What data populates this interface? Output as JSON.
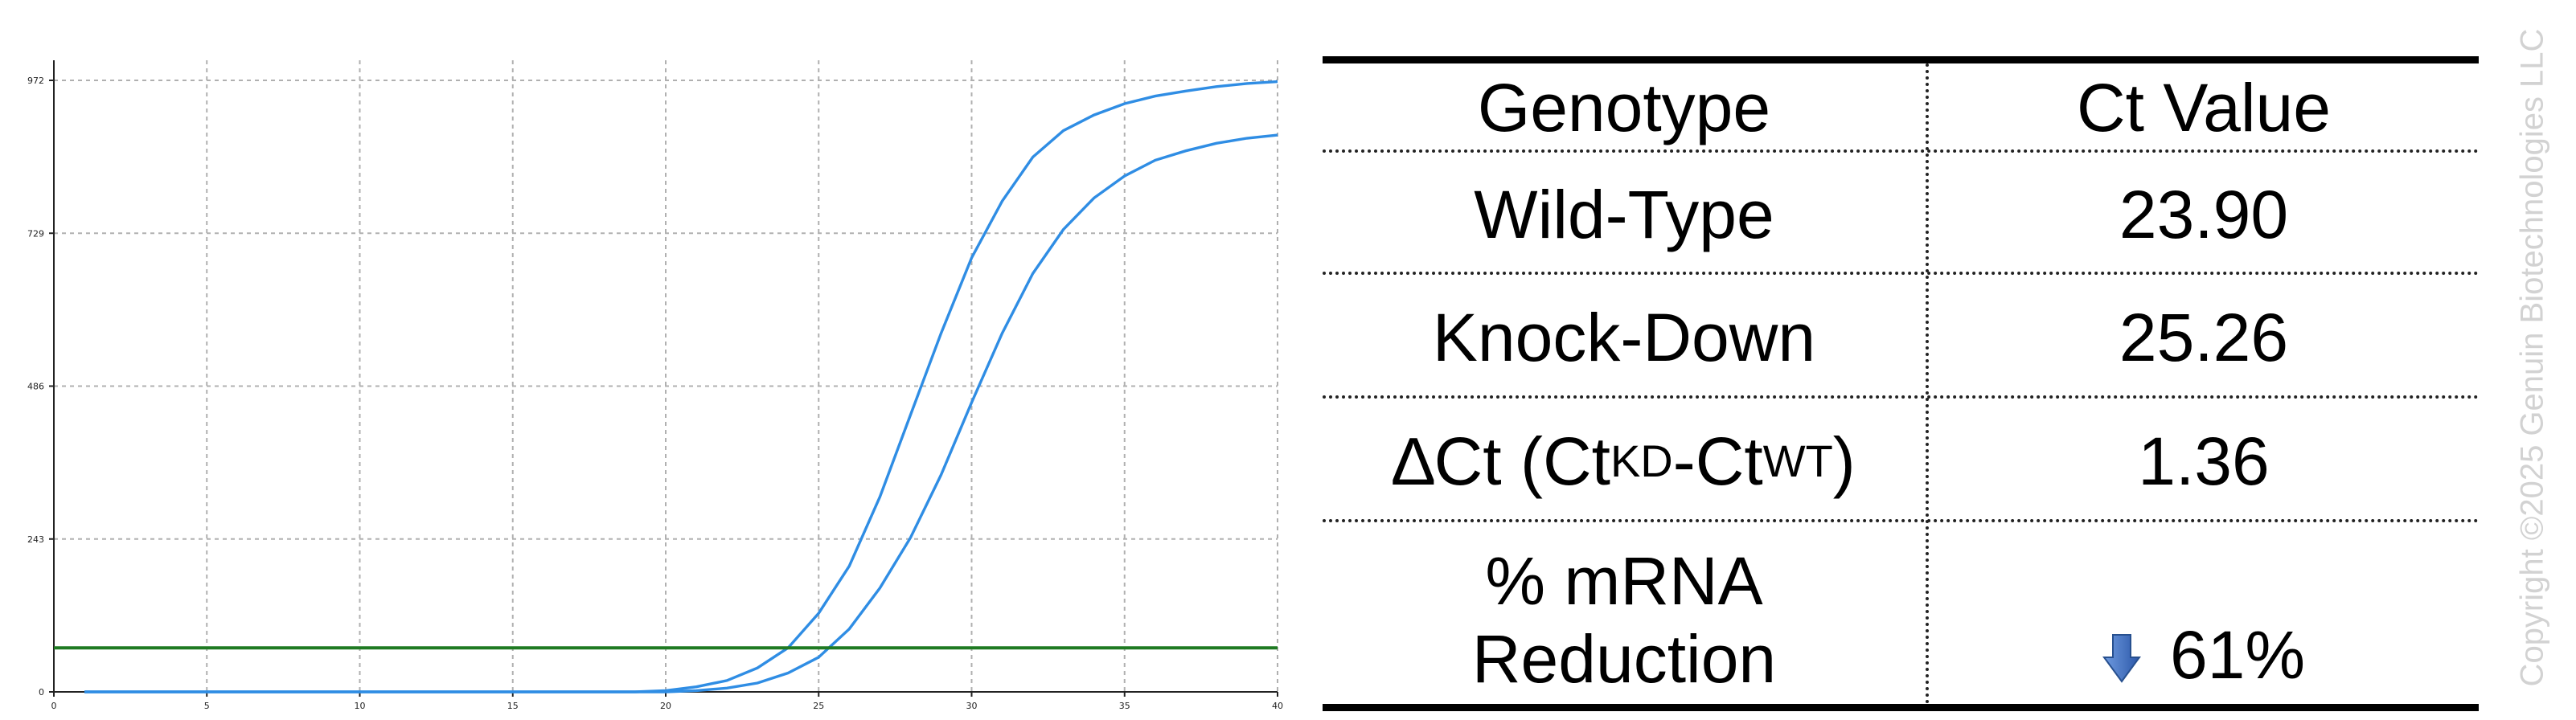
{
  "chart_data": {
    "type": "line",
    "title": "",
    "xlabel": "",
    "ylabel": "",
    "xlim": [
      0,
      40
    ],
    "ylim": [
      0,
      972
    ],
    "x_ticks": [
      0,
      5,
      10,
      15,
      20,
      25,
      30,
      35,
      40
    ],
    "y_ticks": [
      0,
      243,
      486,
      729,
      972
    ],
    "grid": true,
    "threshold": 70,
    "series": [
      {
        "x": [
          1,
          2,
          3,
          4,
          5,
          6,
          7,
          8,
          9,
          10,
          11,
          12,
          13,
          14,
          15,
          16,
          17,
          18,
          19,
          20,
          21,
          22,
          23,
          24,
          25,
          26,
          27,
          28,
          29,
          30,
          31,
          32,
          33,
          34,
          35,
          36,
          37,
          38,
          39,
          40
        ],
        "values": [
          0,
          0,
          0,
          0,
          0,
          0,
          0,
          0,
          0,
          0,
          0,
          0,
          0,
          0,
          0,
          0,
          0,
          0,
          0,
          2,
          8,
          18,
          38,
          70,
          125,
          200,
          310,
          440,
          570,
          690,
          780,
          850,
          892,
          917,
          935,
          947,
          955,
          962,
          967,
          970
        ]
      },
      {
        "x": [
          1,
          2,
          3,
          4,
          5,
          6,
          7,
          8,
          9,
          10,
          11,
          12,
          13,
          14,
          15,
          16,
          17,
          18,
          19,
          20,
          21,
          22,
          23,
          24,
          25,
          26,
          27,
          28,
          29,
          30,
          31,
          32,
          33,
          34,
          35,
          36,
          37,
          38,
          39,
          40
        ],
        "values": [
          0,
          0,
          0,
          0,
          0,
          0,
          0,
          0,
          0,
          0,
          0,
          0,
          0,
          0,
          0,
          0,
          0,
          0,
          0,
          0,
          2,
          6,
          14,
          30,
          55,
          100,
          165,
          245,
          345,
          460,
          570,
          665,
          735,
          785,
          820,
          845,
          860,
          872,
          880,
          885
        ]
      }
    ],
    "colors": {
      "curves": "#2f8de4",
      "threshold": "#1f7a22",
      "grid": "#b0b0b0"
    }
  },
  "table": {
    "header": {
      "genotype": "Genotype",
      "ct_value": "Ct Value"
    },
    "rows": {
      "wild_type": {
        "label": "Wild-Type",
        "value": "23.90"
      },
      "knock_down": {
        "label": "Knock-Down",
        "value": "25.26"
      },
      "delta_ct": {
        "label_prefix": "∆Ct (Ct",
        "sub_kd": "KD",
        "label_mid": "-Ct",
        "sub_wt": "WT",
        "label_suffix": ")",
        "value": "1.36"
      },
      "reduction": {
        "label_line1": "% mRNA",
        "label_line2": "Reduction",
        "value": "61%",
        "icon": "down-arrow-icon",
        "icon_color": "#3a6fc4"
      }
    }
  },
  "watermark": "Copyright ©2025 Genuin Biotechnologies LLC"
}
